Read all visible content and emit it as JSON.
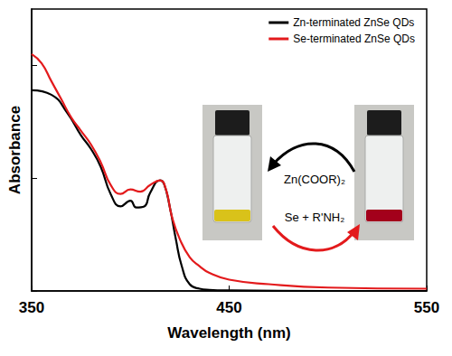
{
  "chart_data": {
    "type": "line",
    "x_label": "Wavelength (nm)",
    "y_label": "Absorbance",
    "xlim": [
      350,
      550
    ],
    "xticks": [
      350,
      450,
      550
    ],
    "ylim": [
      0,
      2.5
    ],
    "yticks": [
      0,
      1,
      2
    ],
    "tick_labels": "x",
    "grid": false,
    "legend": "upper right",
    "series": [
      {
        "name": "Zn-terminated ZnSe QDs",
        "color": "#000000",
        "x": [
          350,
          360,
          368,
          375,
          380,
          385,
          390,
          395,
          400,
          403,
          407,
          410,
          415,
          417,
          420,
          423,
          426,
          430,
          435,
          440,
          450,
          500,
          550
        ],
        "values": [
          1.78,
          1.74,
          1.58,
          1.38,
          1.26,
          1.1,
          0.86,
          0.75,
          0.8,
          0.74,
          0.75,
          0.87,
          0.98,
          0.95,
          0.74,
          0.46,
          0.22,
          0.06,
          0.02,
          0.01,
          0.005,
          0,
          0
        ]
      },
      {
        "name": "Se-terminated ZnSe QDs",
        "color": "#e31a1c",
        "x": [
          350,
          355,
          360,
          365,
          370,
          375,
          380,
          385,
          390,
          395,
          400,
          405,
          410,
          415,
          418,
          421,
          425,
          430,
          435,
          440,
          450,
          470,
          500,
          550
        ],
        "values": [
          2.1,
          2.02,
          1.86,
          1.7,
          1.54,
          1.42,
          1.3,
          1.14,
          0.94,
          0.86,
          0.9,
          0.88,
          0.94,
          0.98,
          0.9,
          0.66,
          0.46,
          0.3,
          0.22,
          0.16,
          0.1,
          0.06,
          0.03,
          0.02
        ]
      }
    ],
    "annotations": [
      {
        "text": "Zn(COOR)₂",
        "color": "#000000"
      },
      {
        "text": "Se + R'NH₂",
        "color": "#000000"
      }
    ]
  }
}
